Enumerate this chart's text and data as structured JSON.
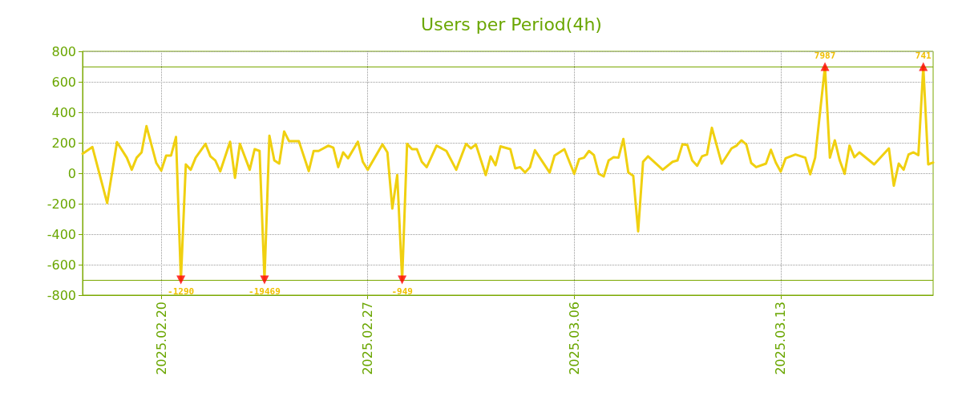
{
  "chart_data": {
    "type": "line",
    "title": "Users per Period(4h)",
    "xlim": [
      "2025-02-17T08:00",
      "2025-03-18T04:00"
    ],
    "xticks": [
      {
        "value": "2025-02-20",
        "label": "2025.02.20"
      },
      {
        "value": "2025-02-27",
        "label": "2025.02.27"
      },
      {
        "value": "2025-03-06",
        "label": "2025.03.06"
      },
      {
        "value": "2025-03-13",
        "label": "2025.03.13"
      }
    ],
    "ylim": [
      -800,
      800
    ],
    "yticks": [
      -800,
      -600,
      -400,
      -200,
      0,
      200,
      400,
      600,
      800
    ],
    "grid": true,
    "series": [
      {
        "color": "#f0d010",
        "marker": "none",
        "line_style": "solid",
        "x": [
          "2025-02-17T08:00",
          "2025-02-17T16:00",
          "2025-02-18T04:00",
          "2025-02-18T12:00",
          "2025-02-18T20:00",
          "2025-02-19T00:00",
          "2025-02-19T04:00",
          "2025-02-19T08:00",
          "2025-02-19T12:00",
          "2025-02-19T20:00",
          "2025-02-20T00:00",
          "2025-02-20T04:00",
          "2025-02-20T08:00",
          "2025-02-20T12:00",
          "2025-02-20T16:00",
          "2025-02-20T20:00",
          "2025-02-21T00:00",
          "2025-02-21T04:00",
          "2025-02-21T12:00",
          "2025-02-21T16:00",
          "2025-02-21T20:00",
          "2025-02-22T00:00",
          "2025-02-22T08:00",
          "2025-02-22T12:00",
          "2025-02-22T16:00",
          "2025-02-23T00:00",
          "2025-02-23T04:00",
          "2025-02-23T08:00",
          "2025-02-23T12:00",
          "2025-02-23T16:00",
          "2025-02-23T20:00",
          "2025-02-24T00:00",
          "2025-02-24T04:00",
          "2025-02-24T08:00",
          "2025-02-24T16:00",
          "2025-02-25T00:00",
          "2025-02-25T04:00",
          "2025-02-25T08:00",
          "2025-02-25T16:00",
          "2025-02-25T20:00",
          "2025-02-26T00:00",
          "2025-02-26T04:00",
          "2025-02-26T08:00",
          "2025-02-26T16:00",
          "2025-02-26T20:00",
          "2025-02-27T00:00",
          "2025-02-27T12:00",
          "2025-02-27T16:00",
          "2025-02-27T20:00",
          "2025-02-28T00:00",
          "2025-02-28T04:00",
          "2025-02-28T08:00",
          "2025-02-28T12:00",
          "2025-02-28T16:00",
          "2025-02-28T20:00",
          "2025-03-01T00:00",
          "2025-03-01T08:00",
          "2025-03-01T16:00",
          "2025-03-02T00:00",
          "2025-03-02T08:00",
          "2025-03-02T12:00",
          "2025-03-02T16:00",
          "2025-03-03T00:00",
          "2025-03-03T04:00",
          "2025-03-03T08:00",
          "2025-03-03T12:00",
          "2025-03-03T20:00",
          "2025-03-04T00:00",
          "2025-03-04T04:00",
          "2025-03-04T08:00",
          "2025-03-04T12:00",
          "2025-03-04T16:00",
          "2025-03-05T04:00",
          "2025-03-05T08:00",
          "2025-03-05T16:00",
          "2025-03-06T00:00",
          "2025-03-06T04:00",
          "2025-03-06T08:00",
          "2025-03-06T12:00",
          "2025-03-06T16:00",
          "2025-03-06T20:00",
          "2025-03-07T00:00",
          "2025-03-07T04:00",
          "2025-03-07T08:00",
          "2025-03-07T12:00",
          "2025-03-07T16:00",
          "2025-03-07T20:00",
          "2025-03-08T00:00",
          "2025-03-08T04:00",
          "2025-03-08T08:00",
          "2025-03-08T12:00",
          "2025-03-09T00:00",
          "2025-03-09T08:00",
          "2025-03-09T12:00",
          "2025-03-09T16:00",
          "2025-03-09T20:00",
          "2025-03-10T00:00",
          "2025-03-10T04:00",
          "2025-03-10T08:00",
          "2025-03-10T12:00",
          "2025-03-10T16:00",
          "2025-03-11T00:00",
          "2025-03-11T08:00",
          "2025-03-11T12:00",
          "2025-03-11T16:00",
          "2025-03-11T20:00",
          "2025-03-12T00:00",
          "2025-03-12T04:00",
          "2025-03-12T12:00",
          "2025-03-12T16:00",
          "2025-03-12T20:00",
          "2025-03-13T00:00",
          "2025-03-13T04:00",
          "2025-03-13T12:00",
          "2025-03-13T20:00",
          "2025-03-14T00:00",
          "2025-03-14T04:00",
          "2025-03-14T12:00",
          "2025-03-14T16:00",
          "2025-03-14T20:00",
          "2025-03-15T00:00",
          "2025-03-15T04:00",
          "2025-03-15T08:00",
          "2025-03-15T12:00",
          "2025-03-15T16:00",
          "2025-03-16T04:00",
          "2025-03-16T16:00",
          "2025-03-16T20:00",
          "2025-03-17T00:00",
          "2025-03-17T04:00",
          "2025-03-17T08:00",
          "2025-03-17T12:00",
          "2025-03-17T16:00",
          "2025-03-17T20:00",
          "2025-03-18T00:00",
          "2025-03-18T04:00"
        ],
        "values": [
          128,
          172,
          -196,
          204,
          102,
          23,
          102,
          137,
          309,
          67,
          17,
          116,
          116,
          238,
          -700,
          58,
          23,
          102,
          193,
          111,
          84,
          12,
          207,
          -30,
          193,
          23,
          158,
          146,
          -700,
          246,
          84,
          63,
          274,
          210,
          210,
          14,
          146,
          146,
          181,
          168,
          40,
          137,
          98,
          207,
          75,
          23,
          189,
          137,
          -232,
          -12,
          -700,
          193,
          158,
          158,
          75,
          40,
          181,
          146,
          23,
          193,
          163,
          189,
          -12,
          111,
          53,
          176,
          158,
          32,
          40,
          5,
          40,
          151,
          5,
          116,
          158,
          -4,
          93,
          102,
          146,
          119,
          -4,
          -21,
          84,
          105,
          102,
          225,
          5,
          -17,
          -381,
          75,
          111,
          23,
          75,
          84,
          189,
          186,
          84,
          49,
          111,
          123,
          298,
          63,
          163,
          181,
          216,
          189,
          67,
          40,
          63,
          154,
          70,
          11,
          98,
          123,
          102,
          -7,
          102,
          700,
          102,
          216,
          84,
          -4,
          181,
          105,
          137,
          58,
          163,
          -82,
          63,
          23,
          123,
          137,
          119,
          700,
          58,
          70
        ]
      },
      {
        "type": "scatter",
        "color": "#ff0000",
        "marker": "triangle",
        "x": [
          "2025-02-20T16:00",
          "2025-02-23T12:00",
          "2025-02-28T04:00",
          "2025-03-14T12:00",
          "2025-03-17T20:00"
        ],
        "values": [
          -700,
          -700,
          -700,
          700,
          700
        ]
      }
    ],
    "ref_lines": [
      {
        "axis": "y",
        "value": 700,
        "color": "#7aa800"
      },
      {
        "axis": "y",
        "value": -700,
        "color": "#7aa800"
      }
    ],
    "annotations": [
      {
        "text": "-1290",
        "x": "2025-02-20T16:00",
        "y": -700
      },
      {
        "text": "-19469",
        "x": "2025-02-23T12:00",
        "y": -700
      },
      {
        "text": "-949",
        "x": "2025-02-28T04:00",
        "y": -700
      },
      {
        "text": "7987",
        "x": "2025-03-14T12:00",
        "y": 700
      },
      {
        "text": "741",
        "x": "2025-03-17T20:00",
        "y": 700
      }
    ]
  }
}
